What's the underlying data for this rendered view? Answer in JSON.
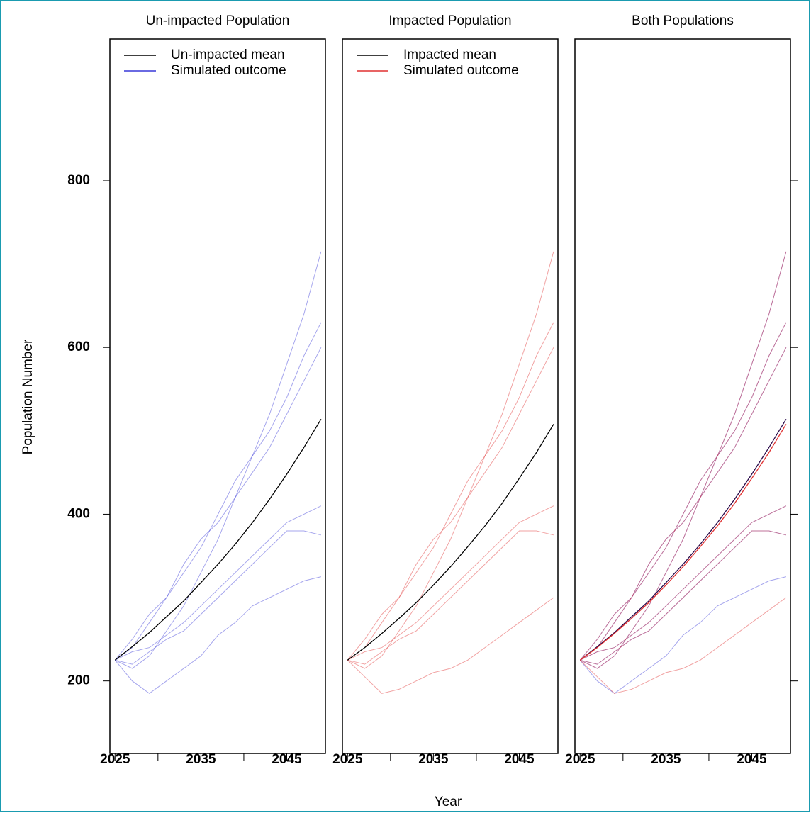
{
  "xlabel": "Year",
  "ylabel": "Population Number",
  "chart_data": [
    {
      "type": "line",
      "title": "Un-impacted Population",
      "legend": true,
      "yaxis": "left",
      "x": [
        2025,
        2027,
        2029,
        2031,
        2033,
        2035,
        2037,
        2039,
        2041,
        2043,
        2045,
        2047,
        2049
      ],
      "xlim": [
        2024.4,
        2049.5
      ],
      "ylim": [
        113,
        970
      ],
      "xticks": [
        2025,
        2035,
        2045
      ],
      "xminorticks": [
        2030,
        2040
      ],
      "yticks": [
        200,
        400,
        600,
        800
      ],
      "series": [
        {
          "name": "Un-impacted mean",
          "color": "#000000",
          "values": [
            225,
            241,
            258,
            277,
            296,
            318,
            340,
            364,
            390,
            418,
            448,
            480,
            514
          ]
        },
        {
          "name": "Simulated outcome",
          "color": "#3838d8",
          "runs": [
            [
              225,
              215,
              230,
              260,
              290,
              330,
              370,
              420,
              470,
              520,
              580,
              640,
              715
            ],
            [
              225,
              200,
              185,
              200,
              215,
              230,
              255,
              270,
              290,
              300,
              310,
              320,
              325
            ],
            [
              225,
              250,
              280,
              300,
              330,
              360,
              400,
              440,
              470,
              500,
              540,
              590,
              630
            ],
            [
              225,
              235,
              240,
              255,
              270,
              290,
              310,
              330,
              350,
              370,
              390,
              400,
              410
            ],
            [
              225,
              240,
              270,
              300,
              340,
              370,
              390,
              420,
              450,
              480,
              520,
              560,
              600
            ],
            [
              225,
              220,
              235,
              250,
              260,
              280,
              300,
              320,
              340,
              360,
              380,
              380,
              375
            ]
          ]
        }
      ]
    },
    {
      "type": "line",
      "title": "Impacted Population",
      "legend": true,
      "yaxis": "none",
      "x": [
        2025,
        2027,
        2029,
        2031,
        2033,
        2035,
        2037,
        2039,
        2041,
        2043,
        2045,
        2047,
        2049
      ],
      "xlim": [
        2024.4,
        2049.5
      ],
      "ylim": [
        113,
        970
      ],
      "xticks": [
        2025,
        2035,
        2045
      ],
      "xminorticks": [
        2030,
        2040
      ],
      "yticks": [
        200,
        400,
        600,
        800
      ],
      "series": [
        {
          "name": "Impacted mean",
          "color": "#000000",
          "values": [
            225,
            240,
            257,
            275,
            294,
            315,
            337,
            361,
            386,
            413,
            443,
            474,
            508
          ]
        },
        {
          "name": "Simulated outcome",
          "color": "#e03030",
          "runs": [
            [
              225,
              215,
              230,
              260,
              290,
              330,
              370,
              420,
              470,
              520,
              580,
              640,
              715
            ],
            [
              225,
              205,
              185,
              190,
              200,
              210,
              215,
              225,
              240,
              255,
              270,
              285,
              300
            ],
            [
              225,
              250,
              280,
              300,
              330,
              360,
              400,
              440,
              470,
              500,
              540,
              590,
              630
            ],
            [
              225,
              235,
              240,
              255,
              270,
              290,
              310,
              330,
              350,
              370,
              390,
              400,
              410
            ],
            [
              225,
              240,
              270,
              300,
              340,
              370,
              390,
              420,
              450,
              480,
              520,
              560,
              600
            ],
            [
              225,
              220,
              235,
              250,
              260,
              280,
              300,
              320,
              340,
              360,
              380,
              380,
              375
            ]
          ]
        }
      ]
    },
    {
      "type": "line",
      "title": "Both Populations",
      "legend": false,
      "yaxis": "right",
      "x": [
        2025,
        2027,
        2029,
        2031,
        2033,
        2035,
        2037,
        2039,
        2041,
        2043,
        2045,
        2047,
        2049
      ],
      "xlim": [
        2024.4,
        2049.5
      ],
      "ylim": [
        113,
        970
      ],
      "xticks": [
        2025,
        2035,
        2045
      ],
      "xminorticks": [
        2030,
        2040
      ],
      "yticks": [
        200,
        400,
        600,
        800
      ],
      "series": [
        {
          "color": "#3838d8",
          "runs": [
            [
              225,
              215,
              230,
              260,
              290,
              330,
              370,
              420,
              470,
              520,
              580,
              640,
              715
            ],
            [
              225,
              200,
              185,
              200,
              215,
              230,
              255,
              270,
              290,
              300,
              310,
              320,
              325
            ],
            [
              225,
              250,
              280,
              300,
              330,
              360,
              400,
              440,
              470,
              500,
              540,
              590,
              630
            ],
            [
              225,
              235,
              240,
              255,
              270,
              290,
              310,
              330,
              350,
              370,
              390,
              400,
              410
            ],
            [
              225,
              240,
              270,
              300,
              340,
              370,
              390,
              420,
              450,
              480,
              520,
              560,
              600
            ],
            [
              225,
              220,
              235,
              250,
              260,
              280,
              300,
              320,
              340,
              360,
              380,
              380,
              375
            ]
          ]
        },
        {
          "color": "#e03030",
          "runs": [
            [
              225,
              215,
              230,
              260,
              290,
              330,
              370,
              420,
              470,
              520,
              580,
              640,
              715
            ],
            [
              225,
              205,
              185,
              190,
              200,
              210,
              215,
              225,
              240,
              255,
              270,
              285,
              300
            ],
            [
              225,
              250,
              280,
              300,
              330,
              360,
              400,
              440,
              470,
              500,
              540,
              590,
              630
            ],
            [
              225,
              235,
              240,
              255,
              270,
              290,
              310,
              330,
              350,
              370,
              390,
              400,
              410
            ],
            [
              225,
              240,
              270,
              300,
              340,
              370,
              390,
              420,
              450,
              480,
              520,
              560,
              600
            ],
            [
              225,
              220,
              235,
              250,
              260,
              280,
              300,
              320,
              340,
              360,
              380,
              380,
              375
            ]
          ]
        },
        {
          "color": "#2a0a4a",
          "values": [
            225,
            241,
            258,
            277,
            296,
            318,
            340,
            364,
            390,
            418,
            448,
            480,
            514
          ]
        },
        {
          "color": "#e03030",
          "values": [
            225,
            240,
            257,
            275,
            294,
            315,
            337,
            361,
            386,
            413,
            443,
            474,
            508
          ]
        }
      ]
    }
  ]
}
